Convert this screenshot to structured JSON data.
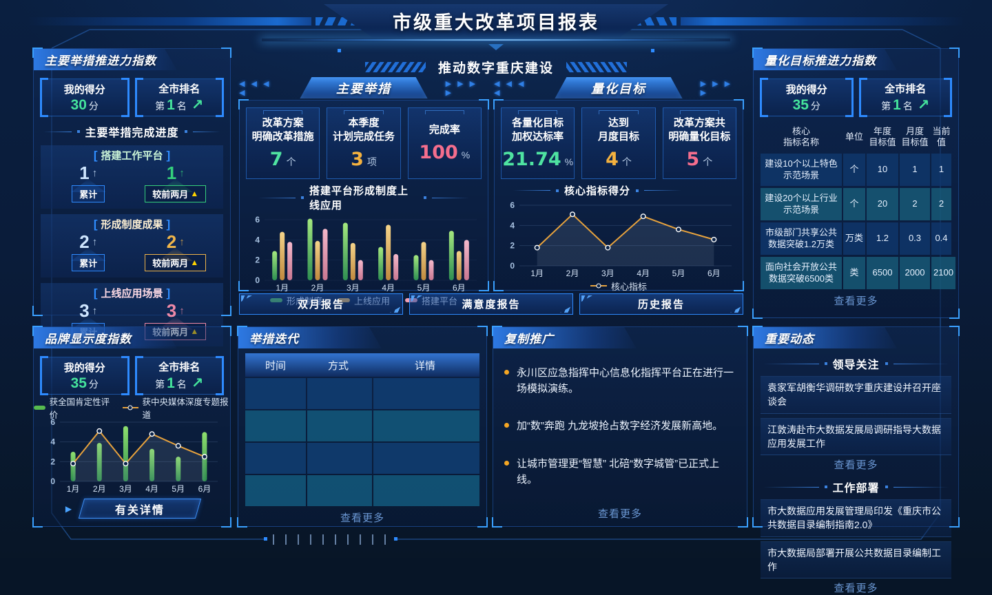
{
  "header": {
    "title": "市级重大改革项目报表",
    "subtitle": "推动数字重庆建设"
  },
  "common": {
    "score_label": "我的得分",
    "rank_label": "全市排名",
    "score_unit": "分",
    "rank_prefix": "第",
    "rank_suffix": "名",
    "cum_label": "累计",
    "mom_label": "较前两月",
    "view_more": "查看更多"
  },
  "icons": {
    "rank_up": "↗",
    "thin_up": "↑",
    "solid_up": "▲",
    "play": "▶",
    "left_arrows": "◀ ◀ ◀ ◀",
    "right_arrows": "▶ ▶ ▶ ▶"
  },
  "left_top": {
    "title": "主要举措推进力指数",
    "score": "30",
    "rank": "1",
    "progress_title": "主要举措完成进度",
    "groups": [
      {
        "name": "搭建工作平台",
        "cum": "1",
        "mom": "1"
      },
      {
        "name": "形成制度成果",
        "cum": "2",
        "mom": "2"
      },
      {
        "name": "上线应用场景",
        "cum": "3",
        "mom": "3"
      }
    ]
  },
  "left_bottom": {
    "title": "品牌显示度指数",
    "score": "35",
    "rank": "1",
    "detail_button": "有关详情"
  },
  "mid_left": {
    "tab": "主要举措",
    "stats": [
      {
        "label1": "改革方案",
        "label2": "明确改革措施",
        "value": "7",
        "unit": "个"
      },
      {
        "label1": "本季度",
        "label2": "计划完成任务",
        "value": "3",
        "unit": "项"
      },
      {
        "label1": "完成率",
        "label2": "",
        "value": "100",
        "unit": "%"
      }
    ]
  },
  "mid_right": {
    "tab": "量化目标",
    "stats": [
      {
        "label1": "各量化目标",
        "label2": "加权达标率",
        "value": "21.74",
        "unit": "%"
      },
      {
        "label1": "达到",
        "label2": "月度目标",
        "value": "4",
        "unit": "个"
      },
      {
        "label1": "改革方案共",
        "label2": "明确量化目标",
        "value": "5",
        "unit": "个"
      }
    ]
  },
  "reports": [
    "双月报告",
    "满意度报告",
    "历史报告"
  ],
  "iteration": {
    "title": "举措迭代",
    "columns": [
      "时间",
      "方式",
      "详情"
    ]
  },
  "replication": {
    "title": "复制推广",
    "items": [
      "永川区应急指挥中心信息化指挥平台正在进行一场模拟演练。",
      "加“数”奔跑 九龙坡抢占数字经济发展新高地。",
      "让城市管理更“智慧” 北碚“数字城管”已正式上线。"
    ]
  },
  "right_top": {
    "title": "量化目标推进力指数",
    "score": "35",
    "rank": "1",
    "columns": [
      {
        "l1": "核心",
        "l2": "指标名称"
      },
      {
        "l1": "单位",
        "l2": ""
      },
      {
        "l1": "年度",
        "l2": "目标值"
      },
      {
        "l1": "月度",
        "l2": "目标值"
      },
      {
        "l1": "当前值",
        "l2": ""
      }
    ],
    "rows": [
      {
        "name": "建设10个以上特色示范场景",
        "unit": "个",
        "annual": "10",
        "monthly": "1",
        "current": "1"
      },
      {
        "name": "建设20个以上行业示范场景",
        "unit": "个",
        "annual": "20",
        "monthly": "2",
        "current": "2"
      },
      {
        "name": "市级部门共享公共数据突破1.2万类",
        "unit": "万类",
        "annual": "1.2",
        "monthly": "0.3",
        "current": "0.4"
      },
      {
        "name": "面向社会开放公共数据突破6500类",
        "unit": "类",
        "annual": "6500",
        "monthly": "2000",
        "current": "2100"
      }
    ]
  },
  "dynamics": {
    "title": "重要动态",
    "sections": [
      {
        "heading": "领导关注",
        "items": [
          "袁家军胡衡华调研数字重庆建设并召开座谈会",
          "江敦涛赴市大数据发展局调研指导大数据应用发展工作"
        ]
      },
      {
        "heading": "工作部署",
        "items": [
          "市大数据应用发展管理局印发《重庆市公共数据目录编制指南2.0》",
          "市大数据局部署开展公共数据目录编制工作"
        ]
      }
    ]
  },
  "chart_data": [
    {
      "id": "brand-visibility-chart",
      "type": "bar+line",
      "title": "",
      "categories": [
        "1月",
        "2月",
        "3月",
        "4月",
        "5月",
        "6月"
      ],
      "ylim": [
        0,
        6
      ],
      "yticks": [
        0,
        2,
        4,
        6
      ],
      "legend_position": "top",
      "grid": true,
      "series": [
        {
          "name": "获全国肯定性评价",
          "kind": "bar",
          "legend_color": "#57bb4f",
          "color_top": "#8fe06e",
          "color_bottom": "#2f8f4e",
          "values": [
            3.0,
            3.9,
            5.6,
            3.3,
            2.5,
            5.0
          ]
        },
        {
          "name": "获中央媒体深度专题报道",
          "kind": "line",
          "color": "#e8a33d",
          "values": [
            1.8,
            5.1,
            1.8,
            4.8,
            3.6,
            2.5
          ]
        }
      ]
    },
    {
      "id": "measures-chart",
      "type": "bar",
      "title": "搭建平台形成制度上线应用",
      "categories": [
        "1月",
        "2月",
        "3月",
        "4月",
        "5月",
        "6月"
      ],
      "ylim": [
        0,
        6
      ],
      "yticks": [
        0,
        2,
        4,
        6
      ],
      "legend_position": "bottom",
      "grid": false,
      "series": [
        {
          "name": "形成制度",
          "kind": "bar",
          "legend_color": "#57bb4f",
          "color_top": "#a5e87f",
          "color_bottom": "#2e8f52",
          "values": [
            2.9,
            6.1,
            5.7,
            3.3,
            2.5,
            4.9
          ]
        },
        {
          "name": "上线应用",
          "kind": "bar",
          "legend_color": "#eab04c",
          "color_top": "#f5d48a",
          "color_bottom": "#c0893e",
          "values": [
            4.8,
            3.9,
            3.7,
            5.5,
            3.8,
            2.9
          ]
        },
        {
          "name": "搭建平台",
          "kind": "bar",
          "legend_color": "#f0a0b4",
          "color_top": "#f5b9cb",
          "color_bottom": "#c97791",
          "values": [
            3.8,
            5.1,
            2.0,
            2.6,
            2.0,
            4.0
          ]
        }
      ]
    },
    {
      "id": "core-indicator-chart",
      "type": "line",
      "title": "核心指标得分",
      "categories": [
        "1月",
        "2月",
        "3月",
        "4月",
        "5月",
        "6月"
      ],
      "ylim": [
        0,
        6
      ],
      "yticks": [
        0,
        2,
        4,
        6
      ],
      "legend_position": "bottom",
      "grid": true,
      "series": [
        {
          "name": "核心指标",
          "kind": "line",
          "color": "#e8a33d",
          "values": [
            1.8,
            5.1,
            1.8,
            4.9,
            3.6,
            2.6
          ]
        }
      ]
    }
  ]
}
